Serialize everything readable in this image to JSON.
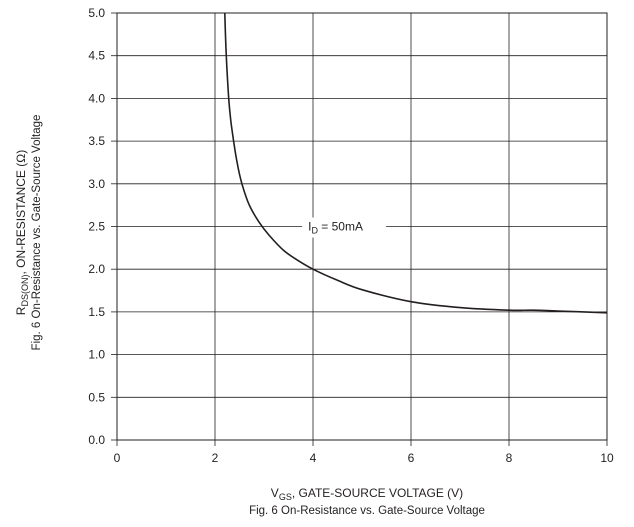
{
  "chart_data": {
    "type": "line",
    "xlabel": {
      "main": "V",
      "sub": "GS",
      "rest": ", GATE-SOURCE VOLTAGE (V)"
    },
    "ylabel": {
      "main": "R",
      "sub": "DS(ON)",
      "rest": ", ON-RESISTANCE (Ω)"
    },
    "y_caption": "Fig. 6  On-Resistance vs. Gate-Source Voltage",
    "caption": "Fig. 6  On-Resistance vs. Gate-Source Voltage",
    "xlim": [
      0,
      10
    ],
    "ylim": [
      0,
      5
    ],
    "x_ticks": [
      "0",
      "2",
      "4",
      "6",
      "8",
      "10"
    ],
    "y_ticks": [
      "0.0",
      "0.5",
      "1.0",
      "1.5",
      "2.0",
      "2.5",
      "3.0",
      "3.5",
      "4.0",
      "4.5",
      "5.0"
    ],
    "grid": true,
    "annotation": {
      "main": "I",
      "sub": "D",
      "rest": " = 50mA"
    },
    "series": [
      {
        "x": [
          2.2,
          2.23,
          2.28,
          2.32,
          2.38,
          2.45,
          2.55,
          2.7,
          2.9,
          3.1,
          3.4,
          3.7,
          4.0,
          4.5,
          5.0,
          6.0,
          7.0,
          8.0,
          8.5,
          9.0,
          10.0
        ],
        "y": [
          5.0,
          4.5,
          4.0,
          3.75,
          3.5,
          3.25,
          3.0,
          2.75,
          2.55,
          2.4,
          2.22,
          2.1,
          2.0,
          1.87,
          1.76,
          1.62,
          1.55,
          1.52,
          1.52,
          1.51,
          1.49
        ]
      }
    ],
    "colors": {
      "line": "#231f20",
      "grid": "#231f20",
      "text": "#231f20"
    }
  }
}
